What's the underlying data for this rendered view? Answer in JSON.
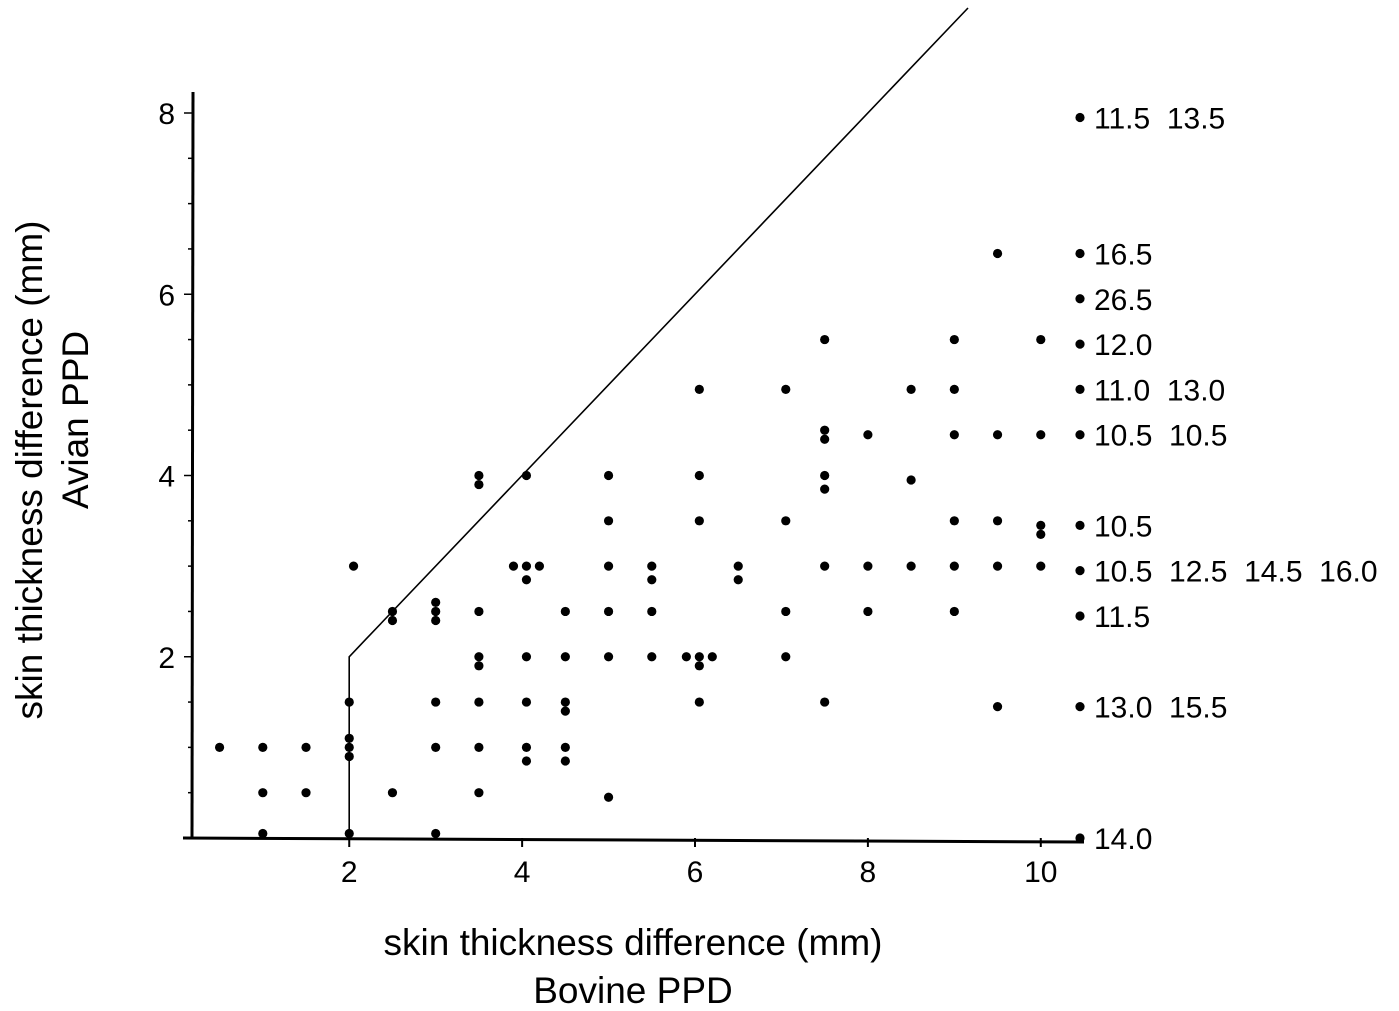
{
  "chart_data": {
    "type": "scatter",
    "title": "",
    "xlabel": "skin thickness difference (mm)",
    "xlabel_sub": "Bovine PPD",
    "ylabel": "skin thickness difference (mm)",
    "ylabel_sub": "Avian PPD",
    "xlim": [
      0,
      10.5
    ],
    "ylim": [
      0,
      8.5
    ],
    "x_ticks": [
      2,
      4,
      6,
      8,
      10
    ],
    "y_ticks": [
      2,
      4,
      6,
      8
    ],
    "x_tick_labels": [
      "2",
      "4",
      "6",
      "8",
      "10"
    ],
    "y_tick_labels": [
      "2",
      "4",
      "6",
      "8"
    ],
    "y_minor_step": 0.5,
    "grid": false,
    "legend": "none",
    "boundary_line": [
      [
        2,
        0
      ],
      [
        2,
        2
      ],
      [
        2.2,
        2.2
      ],
      [
        10,
        10
      ]
    ],
    "points": [
      [
        0.5,
        1.0
      ],
      [
        1.0,
        1.0
      ],
      [
        1.5,
        1.0
      ],
      [
        1.0,
        0.5
      ],
      [
        1.5,
        0.5
      ],
      [
        1.0,
        0.05
      ],
      [
        2.0,
        1.5
      ],
      [
        2.0,
        1.1
      ],
      [
        2.0,
        1.0
      ],
      [
        2.0,
        0.9
      ],
      [
        2.0,
        0.05
      ],
      [
        2.05,
        3.0
      ],
      [
        2.5,
        2.5
      ],
      [
        2.5,
        2.4
      ],
      [
        2.5,
        0.5
      ],
      [
        3.0,
        2.6
      ],
      [
        3.0,
        2.5
      ],
      [
        3.0,
        2.4
      ],
      [
        3.0,
        1.5
      ],
      [
        3.0,
        1.0
      ],
      [
        3.0,
        0.05
      ],
      [
        3.5,
        4.0
      ],
      [
        3.5,
        3.9
      ],
      [
        3.5,
        2.5
      ],
      [
        3.5,
        2.0
      ],
      [
        3.5,
        1.9
      ],
      [
        3.5,
        1.5
      ],
      [
        3.5,
        1.0
      ],
      [
        3.5,
        0.5
      ],
      [
        3.9,
        3.0
      ],
      [
        4.05,
        3.0
      ],
      [
        4.2,
        3.0
      ],
      [
        4.05,
        2.85
      ],
      [
        4.05,
        4.0
      ],
      [
        4.05,
        2.0
      ],
      [
        4.05,
        1.5
      ],
      [
        4.05,
        1.0
      ],
      [
        4.05,
        0.85
      ],
      [
        4.5,
        2.5
      ],
      [
        4.5,
        2.0
      ],
      [
        4.5,
        1.5
      ],
      [
        4.5,
        1.4
      ],
      [
        4.5,
        1.0
      ],
      [
        4.5,
        0.85
      ],
      [
        5.0,
        4.0
      ],
      [
        5.0,
        3.5
      ],
      [
        5.0,
        3.0
      ],
      [
        5.0,
        2.5
      ],
      [
        5.0,
        2.0
      ],
      [
        5.0,
        0.45
      ],
      [
        5.5,
        3.0
      ],
      [
        5.5,
        2.85
      ],
      [
        5.5,
        2.5
      ],
      [
        5.5,
        2.0
      ],
      [
        5.9,
        2.0
      ],
      [
        6.05,
        2.0
      ],
      [
        6.2,
        2.0
      ],
      [
        6.05,
        1.9
      ],
      [
        6.05,
        4.95
      ],
      [
        6.05,
        4.0
      ],
      [
        6.05,
        3.5
      ],
      [
        6.05,
        1.5
      ],
      [
        6.5,
        3.0
      ],
      [
        6.5,
        2.85
      ],
      [
        7.05,
        4.95
      ],
      [
        7.05,
        3.5
      ],
      [
        7.05,
        2.5
      ],
      [
        7.05,
        2.0
      ],
      [
        7.5,
        5.5
      ],
      [
        7.5,
        4.5
      ],
      [
        7.5,
        4.4
      ],
      [
        7.5,
        4.0
      ],
      [
        7.5,
        3.85
      ],
      [
        7.5,
        3.0
      ],
      [
        7.5,
        1.5
      ],
      [
        8.0,
        4.45
      ],
      [
        8.0,
        3.0
      ],
      [
        8.0,
        2.5
      ],
      [
        8.5,
        4.95
      ],
      [
        8.5,
        3.95
      ],
      [
        8.5,
        3.0
      ],
      [
        9.0,
        5.5
      ],
      [
        9.0,
        4.95
      ],
      [
        9.0,
        4.45
      ],
      [
        9.0,
        3.5
      ],
      [
        9.0,
        3.0
      ],
      [
        9.0,
        2.5
      ],
      [
        9.5,
        6.45
      ],
      [
        9.5,
        4.45
      ],
      [
        9.5,
        3.5
      ],
      [
        9.5,
        3.0
      ],
      [
        9.5,
        1.45
      ],
      [
        10.0,
        5.5
      ],
      [
        10.0,
        4.45
      ],
      [
        10.0,
        3.45
      ],
      [
        10.0,
        3.35
      ],
      [
        10.0,
        3.0
      ]
    ],
    "off_scale_points": [
      {
        "y": 7.95,
        "label": "11.5  13.5"
      },
      {
        "y": 6.45,
        "label": "16.5"
      },
      {
        "y": 5.95,
        "label": "26.5"
      },
      {
        "y": 5.45,
        "label": "12.0"
      },
      {
        "y": 4.95,
        "label": "11.0  13.0"
      },
      {
        "y": 4.45,
        "label": "10.5  10.5"
      },
      {
        "y": 3.45,
        "label": "10.5"
      },
      {
        "y": 2.95,
        "label": "10.5  12.5  14.5  16.0"
      },
      {
        "y": 2.45,
        "label": "11.5"
      },
      {
        "y": 1.45,
        "label": "13.0  15.5"
      },
      {
        "y": 0.0,
        "label": "14.0"
      }
    ]
  }
}
